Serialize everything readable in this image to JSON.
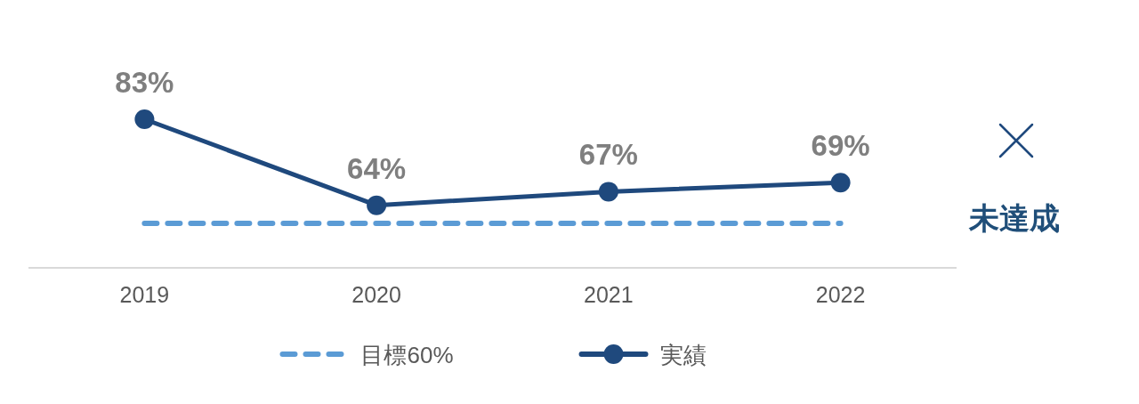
{
  "chart_data": {
    "type": "line",
    "categories": [
      "2019",
      "2020",
      "2021",
      "2022"
    ],
    "series": [
      {
        "name": "目標60%",
        "color": "#5b9bd5",
        "values": [
          60,
          60,
          60,
          60
        ],
        "line_style": "dashed",
        "marker": "none"
      },
      {
        "name": "実績",
        "color": "#1f497d",
        "values": [
          83,
          64,
          67,
          69
        ],
        "line_style": "solid",
        "marker": "circle",
        "value_labels": [
          "83%",
          "64%",
          "67%",
          "69%"
        ]
      }
    ],
    "tick_labels": "x",
    "legend": "bottom",
    "grid": false,
    "annotations": [
      "未達成"
    ]
  }
}
